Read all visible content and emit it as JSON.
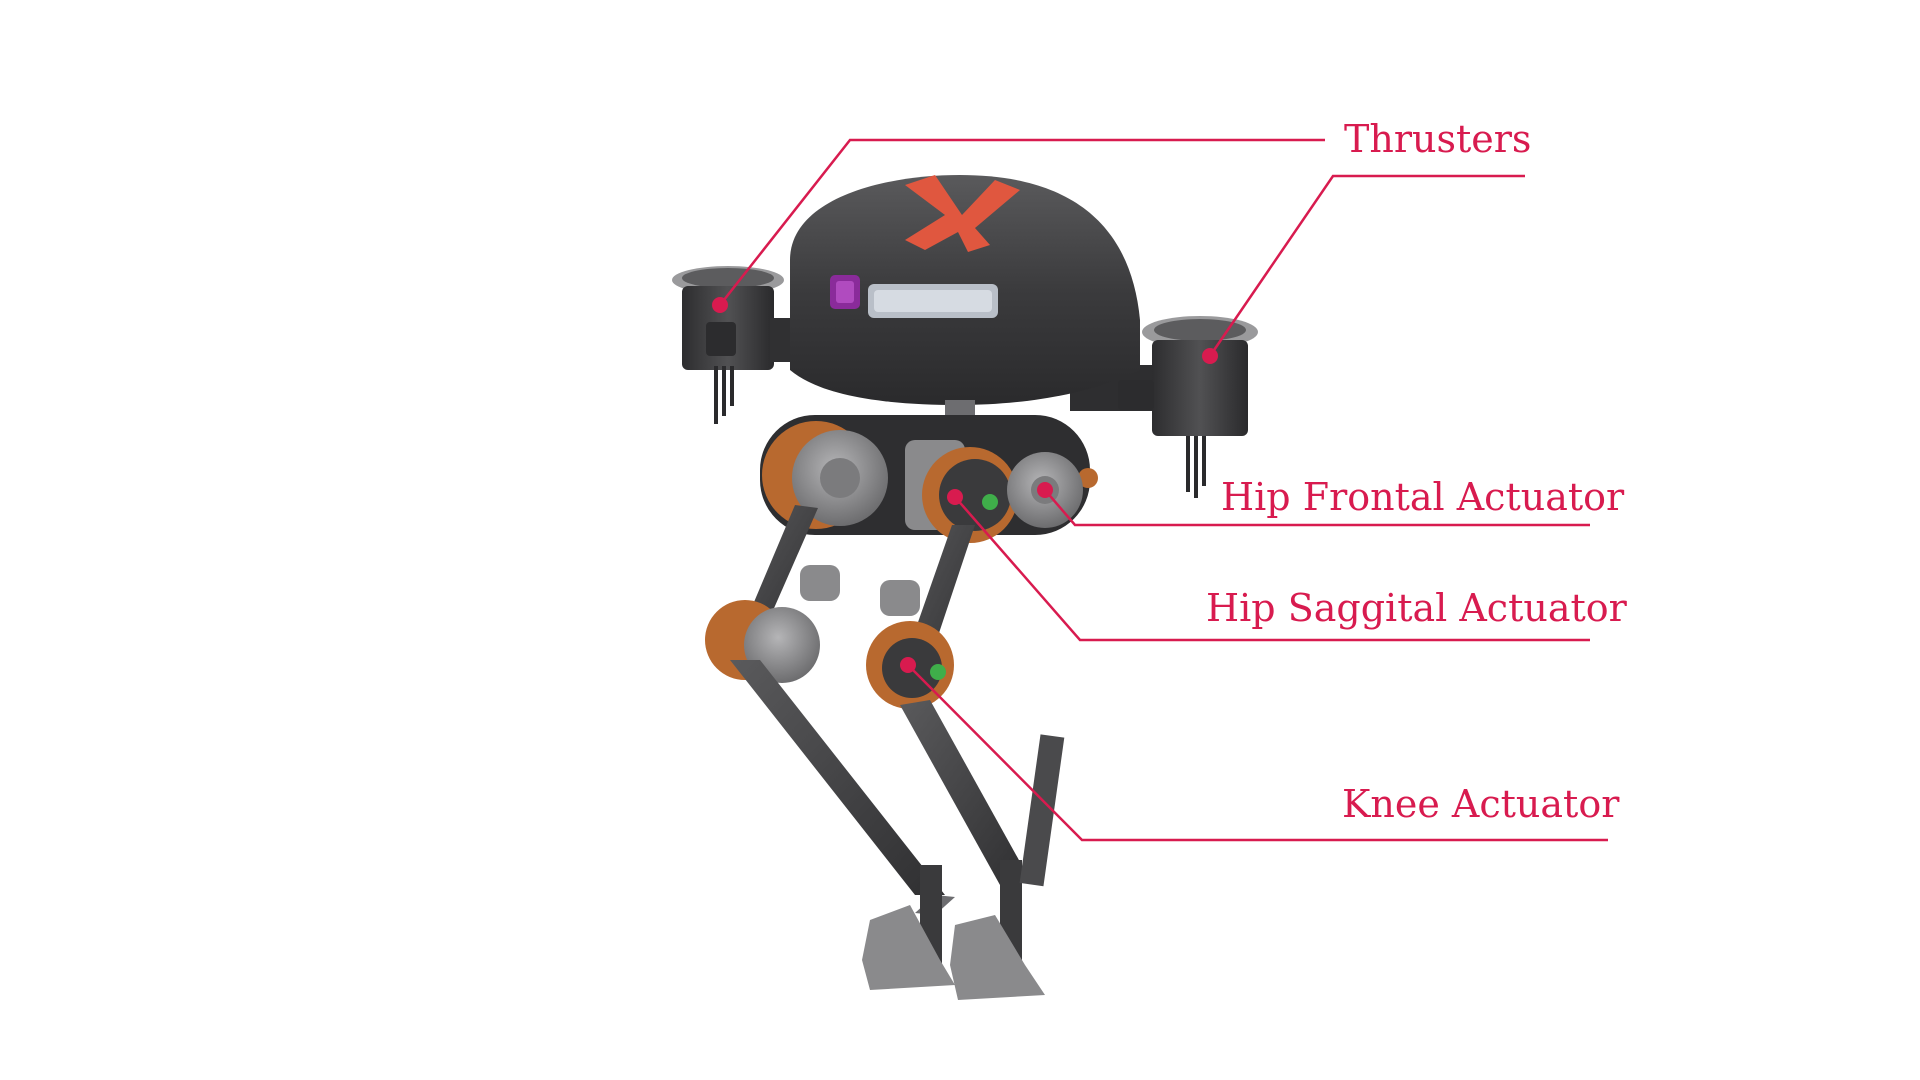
{
  "labels": {
    "thrusters": "Thrusters",
    "hip_frontal": "Hip Frontal Actuator",
    "hip_saggital": "Hip Saggital Actuator",
    "knee": "Knee Actuator"
  },
  "colors": {
    "callout": "#d81b4f",
    "body_dark": "#3b3b3d",
    "carbon": "#4a4a4c",
    "gray_part": "#8c8c8e",
    "orange_part": "#b8692f",
    "logo_red": "#e0573f",
    "sensor_purple": "#8a2b9a",
    "background": "#ffffff"
  }
}
